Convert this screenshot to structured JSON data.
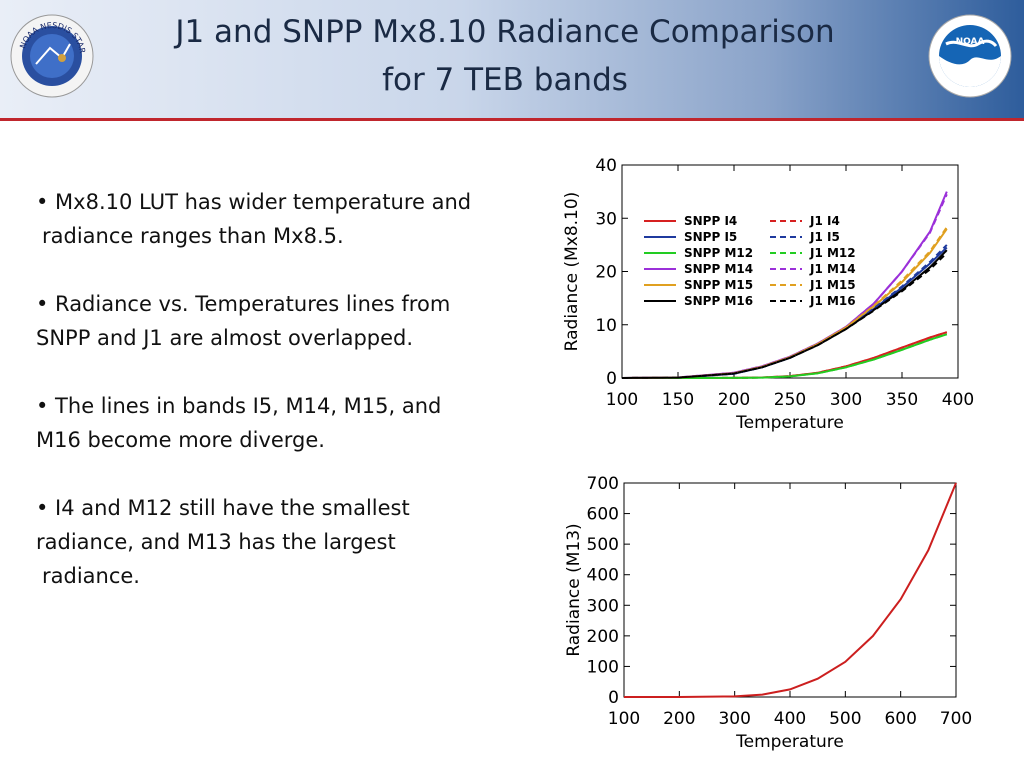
{
  "header": {
    "title_line1": "J1 and SNPP Mx8.10 Radiance Comparison",
    "title_line2": "for 7 TEB bands",
    "logo_left_text": "NOAA NESDIS STAR",
    "logo_right_text": "NOAA",
    "accent_color": "#c0262d"
  },
  "bullets": [
    {
      "lines": [
        "• Mx8.10 LUT has wider temperature and",
        "radiance ranges than Mx8.5."
      ]
    },
    {
      "lines": [
        "• Radiance vs. Temperatures lines from",
        "SNPP and J1 are almost overlapped."
      ]
    },
    {
      "lines": [
        "• The lines in bands I5, M14, M15, and",
        "M16 become more diverge."
      ]
    },
    {
      "lines": [
        "• I4 and M12 still have the smallest",
        "radiance, and M13 has the largest",
        "radiance."
      ]
    }
  ],
  "chart_data": [
    {
      "type": "line",
      "title": "",
      "xlabel": "Temperature",
      "ylabel": "Radiance  (Mx8.10)",
      "xlim": [
        100,
        400
      ],
      "ylim": [
        0,
        40
      ],
      "xticks": [
        "100",
        "150",
        "200",
        "250",
        "300",
        "350",
        "400"
      ],
      "yticks": [
        "0",
        "10",
        "20",
        "30",
        "40"
      ],
      "x": [
        100,
        150,
        200,
        225,
        250,
        275,
        300,
        325,
        350,
        375,
        390
      ],
      "legend_position": "top-left",
      "series": [
        {
          "name": "SNPP I4",
          "color": "#d62020",
          "dash": false,
          "values": [
            0,
            0,
            0.02,
            0.1,
            0.35,
            1.0,
            2.2,
            3.8,
            5.7,
            7.6,
            8.6
          ]
        },
        {
          "name": "SNPP I5",
          "color": "#1f3a9e",
          "dash": false,
          "values": [
            0,
            0.05,
            0.8,
            2.0,
            3.8,
            6.3,
            9.3,
            13.0,
            17.0,
            21.5,
            24.5
          ]
        },
        {
          "name": "SNPP M12",
          "color": "#22cc22",
          "dash": false,
          "values": [
            0,
            0,
            0.01,
            0.08,
            0.3,
            0.9,
            2.0,
            3.5,
            5.3,
            7.2,
            8.2
          ]
        },
        {
          "name": "SNPP M14",
          "color": "#9b30d9",
          "dash": false,
          "values": [
            0,
            0.1,
            1.0,
            2.2,
            4.0,
            6.5,
            9.6,
            14.0,
            20.0,
            27.5,
            35.0
          ]
        },
        {
          "name": "SNPP M15",
          "color": "#e0a020",
          "dash": false,
          "values": [
            0,
            0.08,
            0.9,
            2.1,
            3.9,
            6.4,
            9.5,
            13.5,
            18.0,
            23.5,
            28.0
          ]
        },
        {
          "name": "SNPP M16",
          "color": "#000000",
          "dash": false,
          "values": [
            0,
            0.07,
            0.85,
            2.0,
            3.8,
            6.2,
            9.2,
            12.8,
            16.5,
            20.8,
            24.0
          ]
        },
        {
          "name": "J1 I4",
          "color": "#d62020",
          "dash": true,
          "values": [
            0,
            0,
            0.02,
            0.1,
            0.35,
            1.0,
            2.2,
            3.8,
            5.7,
            7.6,
            8.6
          ]
        },
        {
          "name": "J1 I5",
          "color": "#1f3a9e",
          "dash": true,
          "values": [
            0,
            0.05,
            0.8,
            2.0,
            3.8,
            6.3,
            9.3,
            13.1,
            17.2,
            21.8,
            25.0
          ]
        },
        {
          "name": "J1 M12",
          "color": "#22cc22",
          "dash": true,
          "values": [
            0,
            0,
            0.01,
            0.08,
            0.3,
            0.9,
            2.0,
            3.5,
            5.3,
            7.2,
            8.2
          ]
        },
        {
          "name": "J1 M14",
          "color": "#9b30d9",
          "dash": true,
          "values": [
            0,
            0.1,
            1.0,
            2.2,
            4.0,
            6.5,
            9.6,
            14.0,
            20.0,
            27.3,
            34.5
          ]
        },
        {
          "name": "J1 M15",
          "color": "#e0a020",
          "dash": true,
          "values": [
            0,
            0.08,
            0.9,
            2.1,
            3.9,
            6.4,
            9.5,
            13.6,
            18.3,
            23.8,
            28.3
          ]
        },
        {
          "name": "J1 M16",
          "color": "#000000",
          "dash": true,
          "values": [
            0,
            0.07,
            0.85,
            2.0,
            3.8,
            6.2,
            9.2,
            12.7,
            16.3,
            20.4,
            23.5
          ]
        }
      ]
    },
    {
      "type": "line",
      "title": "",
      "xlabel": "Temperature",
      "ylabel": "Radiance  (M13)",
      "xlim": [
        100,
        700
      ],
      "ylim": [
        0,
        700
      ],
      "xticks": [
        "100",
        "200",
        "300",
        "400",
        "500",
        "600",
        "700"
      ],
      "yticks": [
        "0",
        "100",
        "200",
        "300",
        "400",
        "500",
        "600",
        "700"
      ],
      "x": [
        100,
        200,
        300,
        350,
        400,
        450,
        500,
        550,
        600,
        650,
        700
      ],
      "series": [
        {
          "name": "M13",
          "color": "#cc1f1f",
          "dash": false,
          "values": [
            0,
            0,
            2,
            8,
            25,
            60,
            115,
            200,
            320,
            480,
            700
          ]
        }
      ]
    }
  ]
}
